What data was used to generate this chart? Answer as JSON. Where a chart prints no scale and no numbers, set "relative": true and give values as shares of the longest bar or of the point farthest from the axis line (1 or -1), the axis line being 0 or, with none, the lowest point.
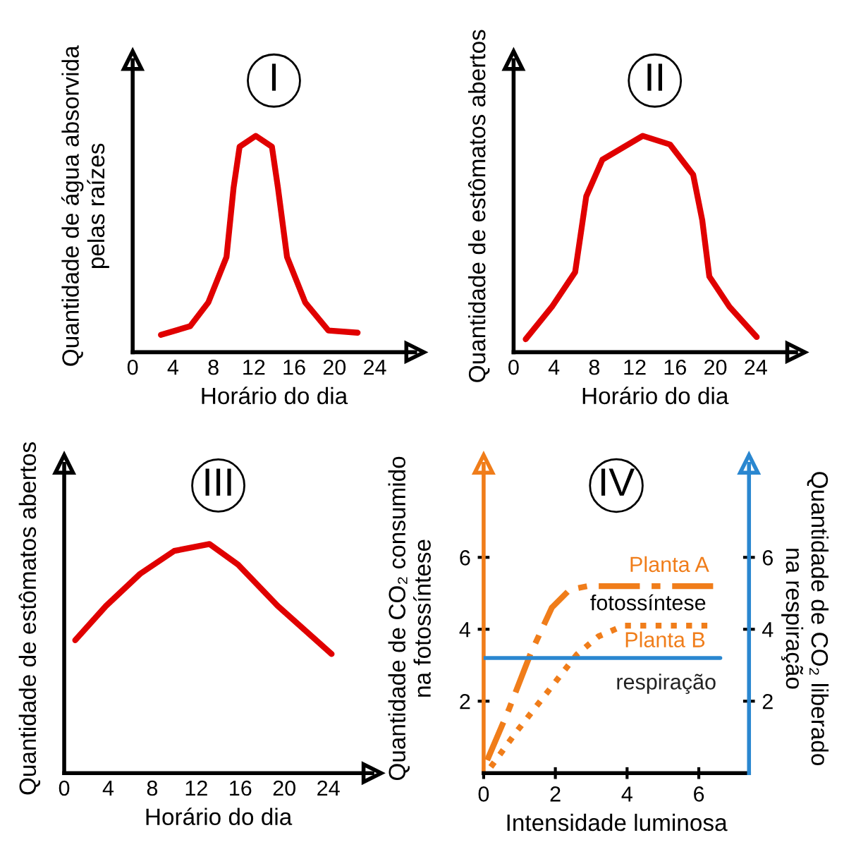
{
  "chart_data": [
    {
      "type": "line",
      "title": "I",
      "xlabel": "Horário do dia",
      "ylabel": "Quantidade de água absorvida\npelas raízes",
      "relative": true,
      "xlim": [
        0,
        28
      ],
      "xticks": [
        0,
        4,
        8,
        12,
        16,
        20,
        24
      ],
      "grid": false,
      "legend": false,
      "marker": "none",
      "line_style": "solid",
      "series": [
        {
          "color": "#e00000",
          "x": [
            2.8,
            5.7,
            7.5,
            9.3,
            10.0,
            10.6,
            12.2,
            13.8,
            14.4,
            15.3,
            17.1,
            19.4,
            22.3
          ],
          "values": [
            0.08,
            0.12,
            0.23,
            0.44,
            0.76,
            0.95,
            1.0,
            0.95,
            0.76,
            0.44,
            0.23,
            0.1,
            0.09
          ]
        }
      ]
    },
    {
      "type": "line",
      "title": "II",
      "xlabel": "Horário do dia",
      "ylabel": "Quantidade de estômatos abertos",
      "relative": true,
      "xlim": [
        0,
        28
      ],
      "xticks": [
        0,
        4,
        8,
        12,
        16,
        20,
        24
      ],
      "grid": false,
      "legend": false,
      "marker": "none",
      "line_style": "solid",
      "series": [
        {
          "color": "#e00000",
          "x": [
            1.2,
            3.8,
            6.1,
            7.2,
            8.8,
            12.8,
            15.5,
            17.8,
            18.7,
            19.4,
            21.4,
            24.1
          ],
          "values": [
            0.06,
            0.21,
            0.37,
            0.72,
            0.89,
            1.0,
            0.96,
            0.82,
            0.61,
            0.35,
            0.21,
            0.07
          ]
        }
      ]
    },
    {
      "type": "line",
      "title": "III",
      "xlabel": "Horário do dia",
      "ylabel": "Quantidade de estômatos abertos",
      "relative": true,
      "xlim": [
        0,
        28
      ],
      "xticks": [
        0,
        4,
        8,
        12,
        16,
        20,
        24
      ],
      "grid": false,
      "legend": false,
      "marker": "none",
      "line_style": "solid",
      "series": [
        {
          "color": "#e00000",
          "x": [
            1.0,
            3.8,
            6.9,
            10.0,
            13.2,
            15.8,
            19.4,
            24.3
          ],
          "values": [
            0.58,
            0.73,
            0.87,
            0.97,
            1.0,
            0.91,
            0.73,
            0.52
          ]
        }
      ]
    },
    {
      "type": "line",
      "title": "IV",
      "xlabel": "Intensidade luminosa",
      "ylabel": "Quantidade de CO₂ consumido\nna fotossíntese",
      "y2label": "Quantidade de CO₂ liberado\nna respiração",
      "xlim": [
        0,
        7.4
      ],
      "xticks": [
        0,
        2,
        4,
        6
      ],
      "ylim": [
        0,
        8.6
      ],
      "yticks": [
        2,
        4,
        6
      ],
      "y2lim": [
        0,
        8.6
      ],
      "y2ticks": [
        2,
        4,
        6
      ],
      "grid": false,
      "legend": false,
      "marker": "none",
      "annotations": [
        "fotossíntese"
      ],
      "series": [
        {
          "name": "Planta A",
          "color": "#f07d1a",
          "line_style": "dashed",
          "x": [
            0.1,
            0.7,
            1.3,
            1.9,
            2.4,
            2.9,
            6.4
          ],
          "values": [
            0.36,
            1.76,
            3.3,
            4.6,
            5.1,
            5.2,
            5.2
          ]
        },
        {
          "name": "Planta B",
          "color": "#f07d1a",
          "line_style": "dotted",
          "x": [
            0.2,
            0.9,
            1.8,
            2.6,
            3.2,
            3.9,
            6.3
          ],
          "values": [
            0.17,
            1.13,
            2.28,
            3.3,
            3.8,
            4.1,
            4.1
          ]
        },
        {
          "name": "respiração",
          "color": "#2a87d0",
          "line_style": "solid",
          "axis": "y2",
          "x": [
            0,
            6.6
          ],
          "values": [
            3.2,
            3.2
          ]
        }
      ]
    }
  ]
}
